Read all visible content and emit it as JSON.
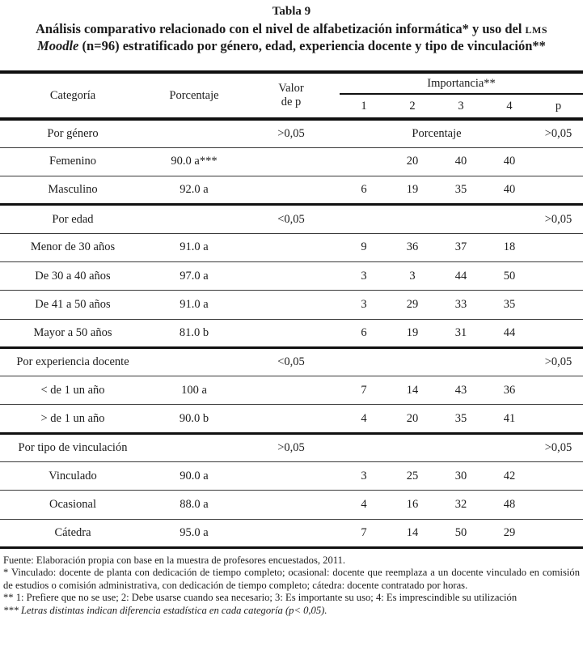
{
  "title": {
    "table_label": "Tabla 9",
    "line1_text": "Análisis comparativo relacionado con el nivel de alfabetización informática* y uso del ",
    "line1_acronym": "LMS",
    "line2_italic": "Moodle",
    "line2_text": " (n=96) estratificado por género, edad, experiencia docente y tipo de vinculación**"
  },
  "table": {
    "headers": {
      "categoria": "Categoría",
      "porcentaje": "Porcentaje",
      "valor_p": "Valor\nde p",
      "importancia": "Importancia**",
      "sub": [
        "1",
        "2",
        "3",
        "4",
        "p"
      ]
    },
    "rows": [
      {
        "label": "Por género",
        "porcentaje": "",
        "valor_p": ">0,05",
        "imp_span": "Porcentaje",
        "imp": [
          "",
          "",
          "",
          ""
        ],
        "p": ">0,05",
        "section": true,
        "thick": false
      },
      {
        "label": "Femenino",
        "porcentaje": "90.0 a***",
        "valor_p": "",
        "imp_span": "",
        "imp": [
          "",
          "20",
          "40",
          "40"
        ],
        "p": "",
        "section": false,
        "thick": false
      },
      {
        "label": "Masculino",
        "porcentaje": "92.0 a",
        "valor_p": "",
        "imp_span": "",
        "imp": [
          "6",
          "19",
          "35",
          "40"
        ],
        "p": "",
        "section": false,
        "thick": true
      },
      {
        "label": "Por edad",
        "porcentaje": "",
        "valor_p": "<0,05",
        "imp_span": "",
        "imp": [
          "",
          "",
          "",
          ""
        ],
        "p": ">0,05",
        "section": true,
        "thick": false
      },
      {
        "label": "Menor de 30 años",
        "porcentaje": "91.0 a",
        "valor_p": "",
        "imp_span": "",
        "imp": [
          "9",
          "36",
          "37",
          "18"
        ],
        "p": "",
        "section": false,
        "thick": false
      },
      {
        "label": "De 30 a 40 años",
        "porcentaje": "97.0 a",
        "valor_p": "",
        "imp_span": "",
        "imp": [
          "3",
          "3",
          "44",
          "50"
        ],
        "p": "",
        "section": false,
        "thick": false
      },
      {
        "label": "De 41 a 50 años",
        "porcentaje": "91.0 a",
        "valor_p": "",
        "imp_span": "",
        "imp": [
          "3",
          "29",
          "33",
          "35"
        ],
        "p": "",
        "section": false,
        "thick": false
      },
      {
        "label": "Mayor a 50 años",
        "porcentaje": "81.0 b",
        "valor_p": "",
        "imp_span": "",
        "imp": [
          "6",
          "19",
          "31",
          "44"
        ],
        "p": "",
        "section": false,
        "thick": true
      },
      {
        "label": "Por experiencia docente",
        "porcentaje": "",
        "valor_p": "<0,05",
        "imp_span": "",
        "imp": [
          "",
          "",
          "",
          ""
        ],
        "p": ">0,05",
        "section": true,
        "thick": false
      },
      {
        "label": "< de 1 un año",
        "porcentaje": "100 a",
        "valor_p": "",
        "imp_span": "",
        "imp": [
          "7",
          "14",
          "43",
          "36"
        ],
        "p": "",
        "section": false,
        "thick": false
      },
      {
        "label": "> de 1 un año",
        "porcentaje": "90.0 b",
        "valor_p": "",
        "imp_span": "",
        "imp": [
          "4",
          "20",
          "35",
          "41"
        ],
        "p": "",
        "section": false,
        "thick": true
      },
      {
        "label": "Por tipo de vinculación",
        "porcentaje": "",
        "valor_p": ">0,05",
        "imp_span": "",
        "imp": [
          "",
          "",
          "",
          ""
        ],
        "p": ">0,05",
        "section": true,
        "thick": false
      },
      {
        "label": "Vinculado",
        "porcentaje": "90.0 a",
        "valor_p": "",
        "imp_span": "",
        "imp": [
          "3",
          "25",
          "30",
          "42"
        ],
        "p": "",
        "section": false,
        "thick": false
      },
      {
        "label": "Ocasional",
        "porcentaje": "88.0 a",
        "valor_p": "",
        "imp_span": "",
        "imp": [
          "4",
          "16",
          "32",
          "48"
        ],
        "p": "",
        "section": false,
        "thick": false
      },
      {
        "label": "Cátedra",
        "porcentaje": "95.0 a",
        "valor_p": "",
        "imp_span": "",
        "imp": [
          "7",
          "14",
          "50",
          "29"
        ],
        "p": "",
        "section": false,
        "thick": true
      }
    ]
  },
  "footer": {
    "fuente": "Fuente: Elaboración propia con base en la muestra de profesores encuestados, 2011.",
    "note_vinculado": "* Vinculado: docente de planta con dedicación de tiempo completo; ocasional: docente que reemplaza a un docente vinculado en comisión de estudios o comisión administrativa, con dedicación de tiempo completo; cátedra: docente contratado por horas.",
    "note_importancia": "** 1: Prefiere que no se use; 2: Debe usarse cuando sea necesario; 3: Es importante su uso; 4: Es imprescindible su utilización",
    "note_letras": "*** Letras distintas indican diferencia estadística en cada categoría (p< 0,05)."
  }
}
